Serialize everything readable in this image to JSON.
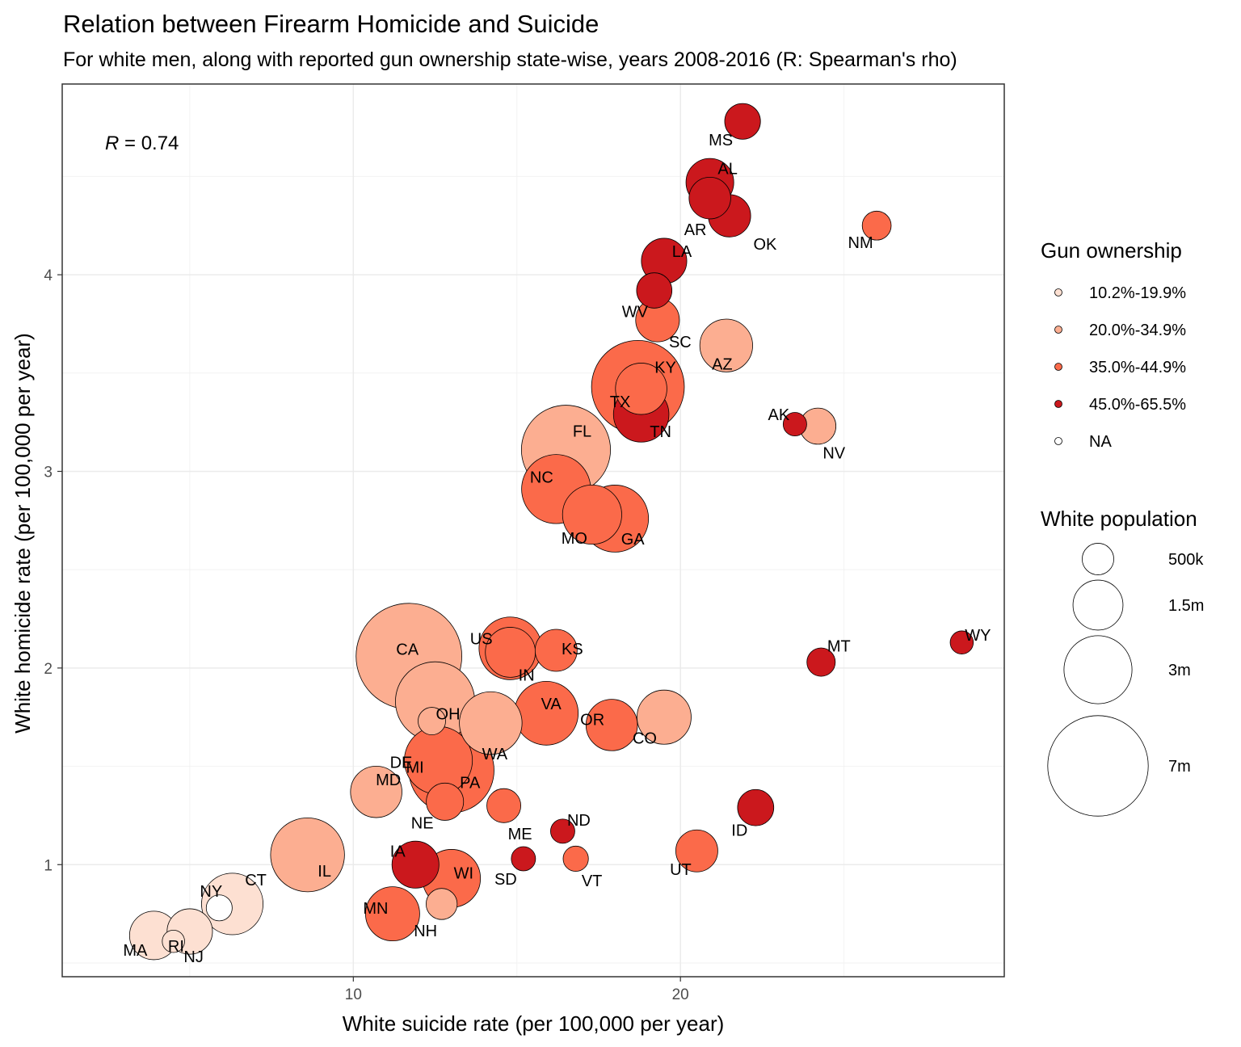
{
  "chart_data": {
    "type": "scatter",
    "title": "Relation between Firearm Homicide and Suicide",
    "subtitle": "For white men, along with reported gun ownership state-wise, years 2008-2016 (R: Spearman's rho)",
    "xlabel": "White suicide rate (per 100,000 per year)",
    "ylabel": "White homicide rate (per 100,000 per year)",
    "xlim": [
      1.1,
      29.9
    ],
    "ylim": [
      0.43,
      4.97
    ],
    "xticks": [
      10,
      20
    ],
    "yticks": [
      1,
      2,
      3,
      4
    ],
    "grid": true,
    "annotation": {
      "prefix": "R",
      "text": " = 0.74"
    },
    "legend_position": "right",
    "color_legend": {
      "title": "Gun ownership",
      "items": [
        {
          "label": "10.2%-19.9%",
          "color": "#fde0d2"
        },
        {
          "label": "20.0%-34.9%",
          "color": "#fcae91"
        },
        {
          "label": "35.0%-44.9%",
          "color": "#fb6a4a"
        },
        {
          "label": "45.0%-65.5%",
          "color": "#cb181d"
        },
        {
          "label": "NA",
          "color": "#ffffff"
        }
      ]
    },
    "size_legend": {
      "title": "White population",
      "items": [
        {
          "label": "500k",
          "value": 0.5
        },
        {
          "label": "1.5m",
          "value": 1.5
        },
        {
          "label": "3m",
          "value": 3
        },
        {
          "label": "7m",
          "value": 7
        }
      ]
    },
    "points": [
      {
        "label": "MS",
        "x": 21.9,
        "y": 4.78,
        "group": "45.0%-65.5%",
        "pop": 0.68
      },
      {
        "label": "AL",
        "x": 20.9,
        "y": 4.47,
        "group": "45.0%-65.5%",
        "pop": 1.35
      },
      {
        "label": "AR",
        "x": 20.9,
        "y": 4.39,
        "group": "45.0%-65.5%",
        "pop": 0.98
      },
      {
        "label": "OK",
        "x": 21.5,
        "y": 4.3,
        "group": "45.0%-65.5%",
        "pop": 1.02
      },
      {
        "label": "NM",
        "x": 26.0,
        "y": 4.25,
        "group": "35.0%-44.9%",
        "pop": 0.4
      },
      {
        "label": "LA",
        "x": 19.5,
        "y": 4.07,
        "group": "45.0%-65.5%",
        "pop": 1.2
      },
      {
        "label": "WV",
        "x": 19.2,
        "y": 3.92,
        "group": "45.0%-65.5%",
        "pop": 0.66
      },
      {
        "label": "SC",
        "x": 19.3,
        "y": 3.77,
        "group": "35.0%-44.9%",
        "pop": 1.1
      },
      {
        "label": "AZ",
        "x": 21.4,
        "y": 3.64,
        "group": "20.0%-34.9%",
        "pop": 1.7
      },
      {
        "label": "KY",
        "x": 18.8,
        "y": 3.42,
        "group": "35.0%-44.9%",
        "pop": 1.6
      },
      {
        "label": "TX",
        "x": 18.7,
        "y": 3.43,
        "group": "35.0%-44.9%",
        "pop": 5.9
      },
      {
        "label": "TN",
        "x": 18.8,
        "y": 3.29,
        "group": "45.0%-65.5%",
        "pop": 1.9
      },
      {
        "label": "AK",
        "x": 23.5,
        "y": 3.24,
        "group": "45.0%-65.5%",
        "pop": 0.23
      },
      {
        "label": "NV",
        "x": 24.2,
        "y": 3.23,
        "group": "20.0%-34.9%",
        "pop": 0.7
      },
      {
        "label": "FL",
        "x": 16.5,
        "y": 3.11,
        "group": "20.0%-34.9%",
        "pop": 5.4
      },
      {
        "label": "NC",
        "x": 16.2,
        "y": 2.91,
        "group": "35.0%-44.9%",
        "pop": 3.1
      },
      {
        "label": "MO",
        "x": 17.3,
        "y": 2.78,
        "group": "35.0%-44.9%",
        "pop": 2.2
      },
      {
        "label": "GA",
        "x": 18.0,
        "y": 2.76,
        "group": "35.0%-44.9%",
        "pop": 2.9
      },
      {
        "label": "CA",
        "x": 11.7,
        "y": 2.06,
        "group": "20.0%-34.9%",
        "pop": 7.8
      },
      {
        "label": "US",
        "x": 14.8,
        "y": 2.1,
        "group": "35.0%-44.9%",
        "pop": 2.5
      },
      {
        "label": "KS",
        "x": 16.2,
        "y": 2.09,
        "group": "35.0%-44.9%",
        "pop": 1.0
      },
      {
        "label": "IN",
        "x": 14.8,
        "y": 2.08,
        "group": "35.0%-44.9%",
        "pop": 1.5
      },
      {
        "label": "MT",
        "x": 24.3,
        "y": 2.03,
        "group": "45.0%-65.5%",
        "pop": 0.38
      },
      {
        "label": "WY",
        "x": 28.6,
        "y": 2.13,
        "group": "45.0%-65.5%",
        "pop": 0.22
      },
      {
        "label": "OH",
        "x": 12.5,
        "y": 1.83,
        "group": "20.0%-34.9%",
        "pop": 4.2
      },
      {
        "label": "VA",
        "x": 15.9,
        "y": 1.77,
        "group": "35.0%-44.9%",
        "pop": 2.6
      },
      {
        "label": "DE",
        "x": 12.4,
        "y": 1.73,
        "group": "20.0%-34.9%",
        "pop": 0.35
      },
      {
        "label": "WA",
        "x": 14.2,
        "y": 1.72,
        "group": "20.0%-34.9%",
        "pop": 2.5
      },
      {
        "label": "OR",
        "x": 17.9,
        "y": 1.71,
        "group": "35.0%-44.9%",
        "pop": 1.6
      },
      {
        "label": "CO",
        "x": 19.5,
        "y": 1.75,
        "group": "20.0%-34.9%",
        "pop": 1.8
      },
      {
        "label": "MI",
        "x": 12.6,
        "y": 1.53,
        "group": "35.0%-44.9%",
        "pop": 3.0
      },
      {
        "label": "PA",
        "x": 13.0,
        "y": 1.48,
        "group": "35.0%-44.9%",
        "pop": 4.9
      },
      {
        "label": "MD",
        "x": 10.7,
        "y": 1.37,
        "group": "20.0%-34.9%",
        "pop": 1.6
      },
      {
        "label": "NE",
        "x": 12.8,
        "y": 1.32,
        "group": "35.0%-44.9%",
        "pop": 0.75
      },
      {
        "label": "ME",
        "x": 14.6,
        "y": 1.3,
        "group": "35.0%-44.9%",
        "pop": 0.6
      },
      {
        "label": "ND",
        "x": 16.4,
        "y": 1.17,
        "group": "45.0%-65.5%",
        "pop": 0.25
      },
      {
        "label": "ID",
        "x": 22.3,
        "y": 1.29,
        "group": "45.0%-65.5%",
        "pop": 0.7
      },
      {
        "label": "IL",
        "x": 8.6,
        "y": 1.05,
        "group": "20.0%-34.9%",
        "pop": 3.6
      },
      {
        "label": "IA",
        "x": 11.9,
        "y": 1.0,
        "group": "45.0%-65.5%",
        "pop": 1.3
      },
      {
        "label": "SD",
        "x": 15.2,
        "y": 1.03,
        "group": "45.0%-65.5%",
        "pop": 0.25
      },
      {
        "label": "VT",
        "x": 16.8,
        "y": 1.03,
        "group": "35.0%-44.9%",
        "pop": 0.28
      },
      {
        "label": "UT",
        "x": 20.5,
        "y": 1.07,
        "group": "35.0%-44.9%",
        "pop": 1.0
      },
      {
        "label": "WI",
        "x": 13.0,
        "y": 0.93,
        "group": "35.0%-44.9%",
        "pop": 2.1
      },
      {
        "label": "CT",
        "x": 6.3,
        "y": 0.8,
        "group": "10.2%-19.9%",
        "pop": 2.4
      },
      {
        "label": "NY",
        "x": 5.9,
        "y": 0.78,
        "group": "NA",
        "pop": 0.3
      },
      {
        "label": "NH",
        "x": 12.7,
        "y": 0.8,
        "group": "20.0%-34.9%",
        "pop": 0.48
      },
      {
        "label": "MN",
        "x": 11.2,
        "y": 0.75,
        "group": "35.0%-44.9%",
        "pop": 1.8
      },
      {
        "label": "RI",
        "x": 5.0,
        "y": 0.66,
        "group": "10.2%-19.9%",
        "pop": 1.2
      },
      {
        "label": "MA",
        "x": 3.9,
        "y": 0.64,
        "group": "10.2%-19.9%",
        "pop": 1.4
      },
      {
        "label": "NJ",
        "x": 4.5,
        "y": 0.61,
        "group": "10.2%-19.9%",
        "pop": 0.2
      }
    ]
  }
}
